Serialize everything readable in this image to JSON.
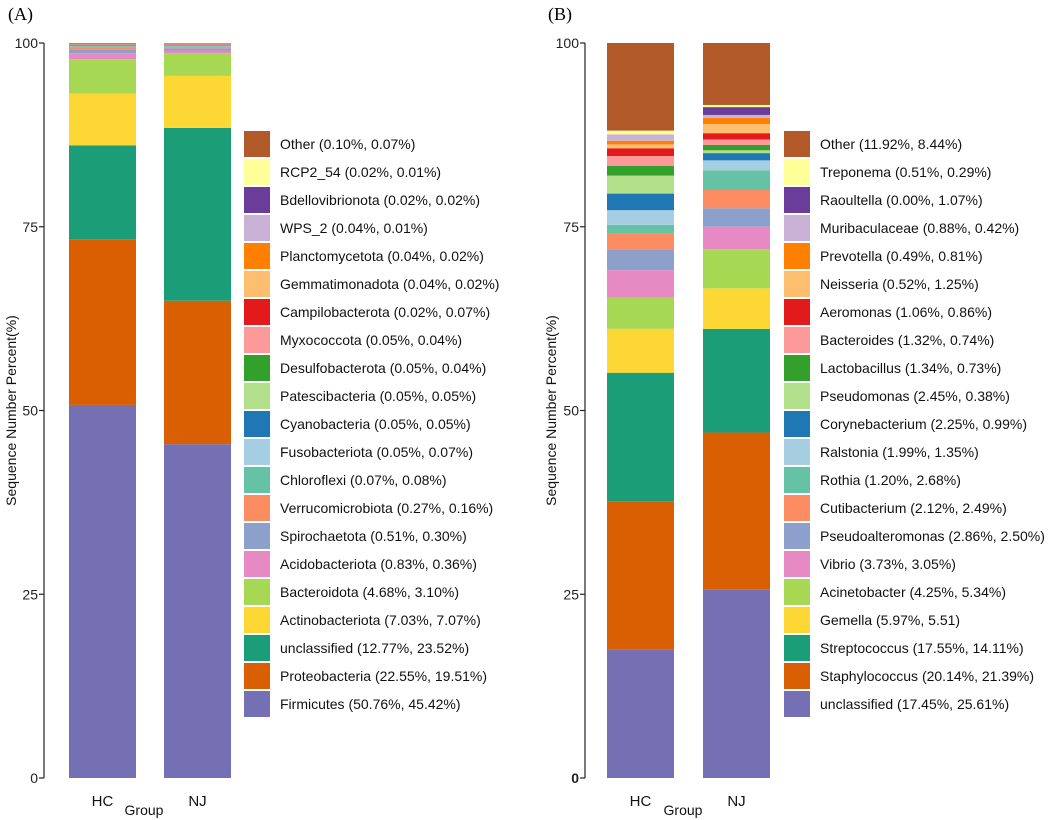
{
  "chart_data": [
    {
      "panel_label": "(A)",
      "type": "bar",
      "stacked": true,
      "title": "",
      "xlabel": "Group",
      "ylabel": "Sequence Number Percent(%)",
      "ylim": [
        0,
        100
      ],
      "yticks": [
        "0",
        "25",
        "50",
        "75",
        "100"
      ],
      "categories": [
        "HC",
        "NJ"
      ],
      "legend_position": "right",
      "series": [
        {
          "name": "Firmicutes",
          "legend": "Firmicutes (50.76%, 45.42%)",
          "color": "#7570b3",
          "values": [
            50.76,
            45.42
          ]
        },
        {
          "name": "Proteobacteria",
          "legend": "Proteobacteria (22.55%, 19.51%)",
          "color": "#d95f02",
          "values": [
            22.55,
            19.51
          ]
        },
        {
          "name": "unclassified",
          "legend": "unclassified (12.77%, 23.52%)",
          "color": "#1b9e77",
          "values": [
            12.77,
            23.52
          ]
        },
        {
          "name": "Actinobacteriota",
          "legend": "Actinobacteriota (7.03%, 7.07%)",
          "color": "#fdd835",
          "values": [
            7.03,
            7.07
          ]
        },
        {
          "name": "Bacteroidota",
          "legend": "Bacteroidota (4.68%, 3.10%)",
          "color": "#a6d854",
          "values": [
            4.68,
            3.1
          ]
        },
        {
          "name": "Acidobacteriota",
          "legend": "Acidobacteriota (0.83%, 0.36%)",
          "color": "#e78ac3",
          "values": [
            0.83,
            0.36
          ]
        },
        {
          "name": "Spirochaetota",
          "legend": "Spirochaetota (0.51%, 0.30%)",
          "color": "#8da0cb",
          "values": [
            0.51,
            0.3
          ]
        },
        {
          "name": "Verrucomicrobiota",
          "legend": "Verrucomicrobiota (0.27%, 0.16%)",
          "color": "#fc8d62",
          "values": [
            0.27,
            0.16
          ]
        },
        {
          "name": "Chloroflexi",
          "legend": "Chloroflexi (0.07%, 0.08%)",
          "color": "#66c2a5",
          "values": [
            0.07,
            0.08
          ]
        },
        {
          "name": "Fusobacteriota",
          "legend": "Fusobacteriota (0.05%, 0.07%)",
          "color": "#a6cee3",
          "values": [
            0.05,
            0.07
          ]
        },
        {
          "name": "Cyanobacteria",
          "legend": "Cyanobacteria (0.05%, 0.05%)",
          "color": "#1f78b4",
          "values": [
            0.05,
            0.05
          ]
        },
        {
          "name": "Patescibacteria",
          "legend": "Patescibacteria (0.05%, 0.05%)",
          "color": "#b2df8a",
          "values": [
            0.05,
            0.05
          ]
        },
        {
          "name": "Desulfobacterota",
          "legend": "Desulfobacterota (0.05%, 0.04%)",
          "color": "#33a02c",
          "values": [
            0.05,
            0.04
          ]
        },
        {
          "name": "Myxococcota",
          "legend": "Myxococcota (0.05%, 0.04%)",
          "color": "#fb9a99",
          "values": [
            0.05,
            0.04
          ]
        },
        {
          "name": "Campilobacterota",
          "legend": "Campilobacterota (0.02%, 0.07%)",
          "color": "#e31a1c",
          "values": [
            0.02,
            0.07
          ]
        },
        {
          "name": "Gemmatimonadota",
          "legend": "Gemmatimonadota (0.04%, 0.02%)",
          "color": "#fdbf6f",
          "values": [
            0.04,
            0.02
          ]
        },
        {
          "name": "Planctomycetota",
          "legend": "Planctomycetota (0.04%, 0.02%)",
          "color": "#ff7f00",
          "values": [
            0.04,
            0.02
          ]
        },
        {
          "name": "WPS_2",
          "legend": "WPS_2 (0.04%, 0.01%)",
          "color": "#cab2d6",
          "values": [
            0.04,
            0.01
          ]
        },
        {
          "name": "Bdellovibrionota",
          "legend": "Bdellovibrionota (0.02%, 0.02%)",
          "color": "#6a3d9a",
          "values": [
            0.02,
            0.02
          ]
        },
        {
          "name": "RCP2_54",
          "legend": "RCP2_54 (0.02%, 0.01%)",
          "color": "#ffff99",
          "values": [
            0.02,
            0.01
          ]
        },
        {
          "name": "Other",
          "legend": "Other (0.10%, 0.07%)",
          "color": "#b15928",
          "values": [
            0.1,
            0.07
          ]
        }
      ]
    },
    {
      "panel_label": "(B)",
      "type": "bar",
      "stacked": true,
      "title": "",
      "xlabel": "Group",
      "ylabel": "Sequence Number Percent(%)",
      "ylim": [
        0,
        100
      ],
      "yticks": [
        "0",
        "25",
        "50",
        "75",
        "100"
      ],
      "categories": [
        "HC",
        "NJ"
      ],
      "legend_position": "right",
      "series": [
        {
          "name": "unclassified",
          "legend": "unclassified (17.45%, 25.61%)",
          "color": "#7570b3",
          "values": [
            17.45,
            25.61
          ]
        },
        {
          "name": "Staphylococcus",
          "legend": "Staphylococcus (20.14%, 21.39%)",
          "color": "#d95f02",
          "values": [
            20.14,
            21.39
          ]
        },
        {
          "name": "Streptococcus",
          "legend": "Streptococcus (17.55%, 14.11%)",
          "color": "#1b9e77",
          "values": [
            17.55,
            14.11
          ]
        },
        {
          "name": "Gemella",
          "legend": "Gemella (5.97%, 5.51)",
          "color": "#fdd835",
          "values": [
            5.97,
            5.51
          ]
        },
        {
          "name": "Acinetobacter",
          "legend": "Acinetobacter (4.25%, 5.34%)",
          "color": "#a6d854",
          "values": [
            4.25,
            5.34
          ]
        },
        {
          "name": "Vibrio",
          "legend": "Vibrio (3.73%, 3.05%)",
          "color": "#e78ac3",
          "values": [
            3.73,
            3.05
          ]
        },
        {
          "name": "Pseudoalteromonas",
          "legend": "Pseudoalteromonas (2.86%, 2.50%)",
          "color": "#8da0cb",
          "values": [
            2.86,
            2.5
          ]
        },
        {
          "name": "Cutibacterium",
          "legend": "Cutibacterium (2.12%, 2.49%)",
          "color": "#fc8d62",
          "values": [
            2.12,
            2.49
          ]
        },
        {
          "name": "Rothia",
          "legend": "Rothia (1.20%, 2.68%)",
          "color": "#66c2a5",
          "values": [
            1.2,
            2.68
          ]
        },
        {
          "name": "Ralstonia",
          "legend": "Ralstonia (1.99%, 1.35%)",
          "color": "#a6cee3",
          "values": [
            1.99,
            1.35
          ]
        },
        {
          "name": "Corynebacterium",
          "legend": "Corynebacterium (2.25%, 0.99%)",
          "color": "#1f78b4",
          "values": [
            2.25,
            0.99
          ]
        },
        {
          "name": "Pseudomonas",
          "legend": "Pseudomonas (2.45%, 0.38%)",
          "color": "#b2df8a",
          "values": [
            2.45,
            0.38
          ]
        },
        {
          "name": "Lactobacillus",
          "legend": "Lactobacillus (1.34%, 0.73%)",
          "color": "#33a02c",
          "values": [
            1.34,
            0.73
          ]
        },
        {
          "name": "Bacteroides",
          "legend": "Bacteroides (1.32%, 0.74%)",
          "color": "#fb9a99",
          "values": [
            1.32,
            0.74
          ]
        },
        {
          "name": "Aeromonas",
          "legend": "Aeromonas (1.06%, 0.86%)",
          "color": "#e31a1c",
          "values": [
            1.06,
            0.86
          ]
        },
        {
          "name": "Neisseria",
          "legend": "Neisseria (0.52%, 1.25%)",
          "color": "#fdbf6f",
          "values": [
            0.52,
            1.25
          ]
        },
        {
          "name": "Prevotella",
          "legend": "Prevotella (0.49%, 0.81%)",
          "color": "#ff7f00",
          "values": [
            0.49,
            0.81
          ]
        },
        {
          "name": "Muribaculaceae",
          "legend": "Muribaculaceae (0.88%, 0.42%)",
          "color": "#cab2d6",
          "values": [
            0.88,
            0.42
          ]
        },
        {
          "name": "Raoultella",
          "legend": "Raoultella (0.00%, 1.07%)",
          "color": "#6a3d9a",
          "values": [
            0.0,
            1.07
          ]
        },
        {
          "name": "Treponema",
          "legend": "Treponema (0.51%, 0.29%)",
          "color": "#ffff99",
          "values": [
            0.51,
            0.29
          ]
        },
        {
          "name": "Other",
          "legend": "Other (11.92%, 8.44%)",
          "color": "#b15928",
          "values": [
            11.92,
            8.44
          ]
        }
      ]
    }
  ]
}
